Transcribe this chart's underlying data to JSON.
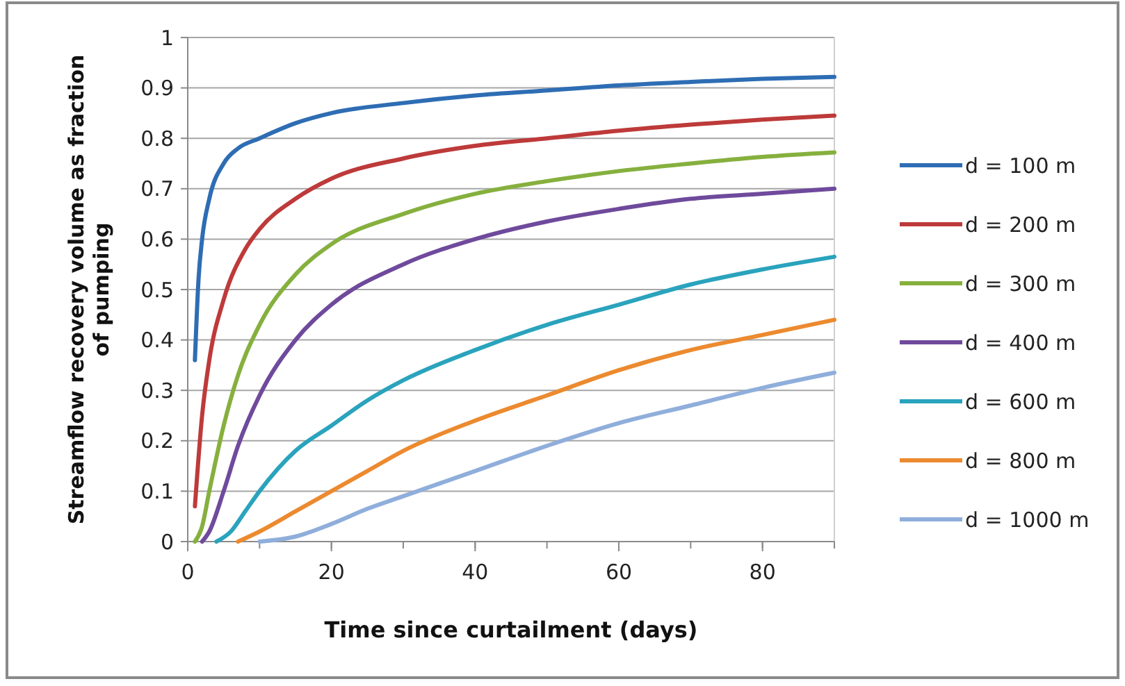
{
  "chart_data": {
    "type": "line",
    "xlabel": "Time since curtailment (days)",
    "ylabel": "Streamflow recovery volume as fraction\nof pumping",
    "xlim": [
      0,
      90
    ],
    "xticks": [
      0,
      20,
      40,
      60,
      80
    ],
    "ylim": [
      0,
      1
    ],
    "yticks": [
      0,
      0.1,
      0.2,
      0.3,
      0.4,
      0.5,
      0.6,
      0.7,
      0.8,
      0.9,
      1
    ],
    "grid": "y",
    "legend": "right",
    "marker": "none",
    "line_style": "solid",
    "series": [
      {
        "name": "d = 100 m",
        "color": "#2e6db4",
        "x": [
          1,
          1.5,
          2,
          3,
          5,
          7,
          10,
          15,
          20,
          30,
          40,
          50,
          60,
          70,
          80,
          90
        ],
        "values": [
          0.36,
          0.52,
          0.6,
          0.68,
          0.75,
          0.78,
          0.8,
          0.83,
          0.85,
          0.87,
          0.885,
          0.895,
          0.905,
          0.912,
          0.918,
          0.922
        ]
      },
      {
        "name": "d = 200 m",
        "color": "#be3a3a",
        "x": [
          1,
          2,
          3,
          5,
          8,
          10,
          15,
          20,
          30,
          40,
          50,
          60,
          70,
          80,
          90
        ],
        "values": [
          0.07,
          0.25,
          0.36,
          0.48,
          0.58,
          0.62,
          0.68,
          0.72,
          0.76,
          0.785,
          0.8,
          0.815,
          0.827,
          0.837,
          0.845
        ]
      },
      {
        "name": "d = 300 m",
        "color": "#86b03e",
        "x": [
          1,
          2,
          3,
          5,
          7,
          10,
          15,
          20,
          30,
          40,
          50,
          60,
          70,
          80,
          90
        ],
        "values": [
          0,
          0.03,
          0.1,
          0.23,
          0.33,
          0.43,
          0.53,
          0.59,
          0.65,
          0.69,
          0.715,
          0.735,
          0.75,
          0.763,
          0.772
        ]
      },
      {
        "name": "d = 400 m",
        "color": "#6f4a9c",
        "x": [
          2,
          3,
          5,
          7,
          10,
          15,
          20,
          30,
          40,
          50,
          60,
          70,
          80,
          90
        ],
        "values": [
          0,
          0.02,
          0.1,
          0.19,
          0.29,
          0.4,
          0.47,
          0.55,
          0.6,
          0.635,
          0.66,
          0.68,
          0.69,
          0.7
        ]
      },
      {
        "name": "d = 600 m",
        "color": "#2aa3bd",
        "x": [
          4,
          6,
          8,
          10,
          15,
          20,
          25,
          30,
          40,
          50,
          60,
          70,
          80,
          90
        ],
        "values": [
          0,
          0.02,
          0.06,
          0.1,
          0.18,
          0.23,
          0.28,
          0.32,
          0.38,
          0.43,
          0.47,
          0.51,
          0.54,
          0.565
        ]
      },
      {
        "name": "d = 800 m",
        "color": "#ec8a2f",
        "x": [
          7,
          10,
          15,
          20,
          25,
          30,
          40,
          50,
          60,
          70,
          80,
          90
        ],
        "values": [
          0,
          0.02,
          0.06,
          0.1,
          0.14,
          0.18,
          0.24,
          0.29,
          0.34,
          0.38,
          0.41,
          0.44
        ]
      },
      {
        "name": "d = 1000 m",
        "color": "#8faedb",
        "x": [
          10,
          15,
          20,
          25,
          30,
          40,
          50,
          60,
          70,
          80,
          90
        ],
        "values": [
          0,
          0.01,
          0.035,
          0.065,
          0.09,
          0.14,
          0.19,
          0.235,
          0.27,
          0.305,
          0.335
        ]
      }
    ]
  }
}
